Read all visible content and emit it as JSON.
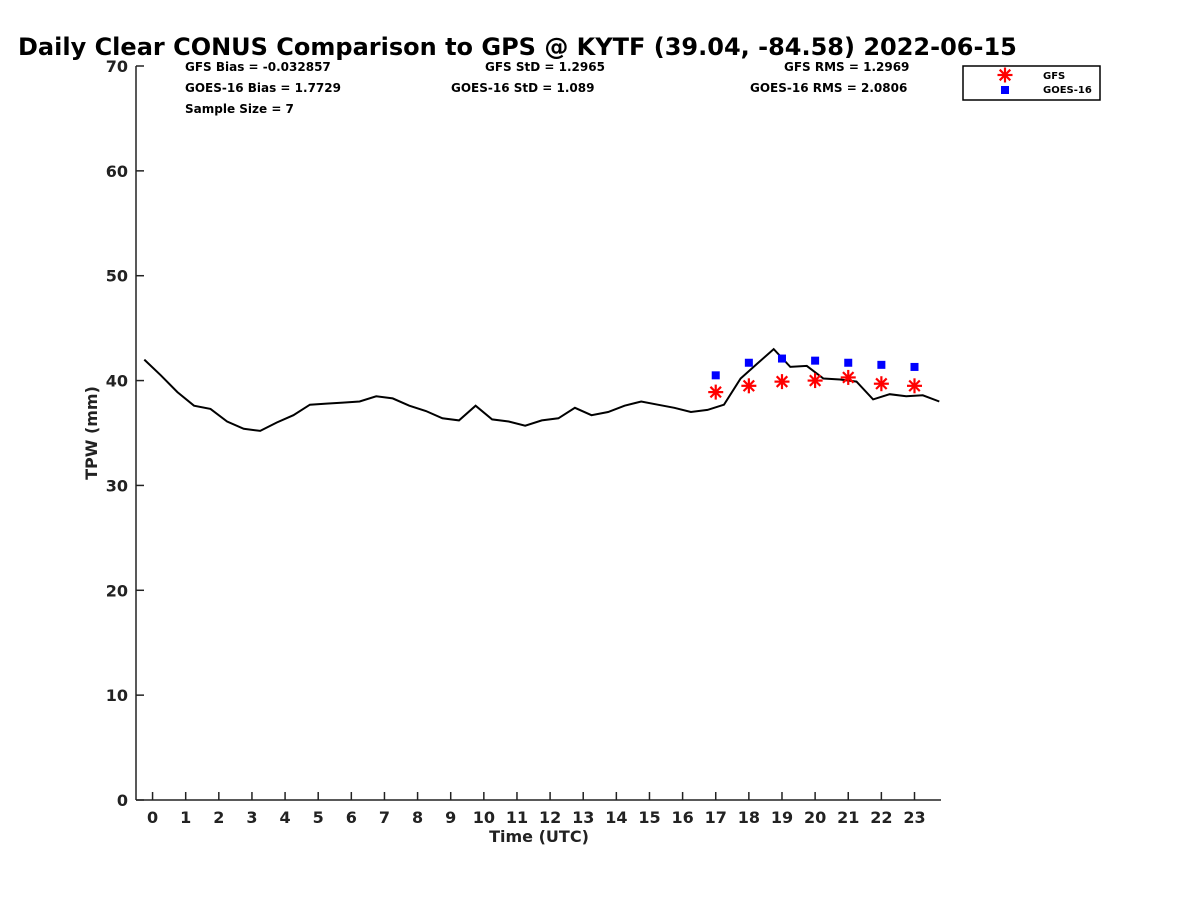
{
  "chart_data": {
    "type": "line",
    "title": "Daily Clear CONUS Comparison to GPS @ KYTF (39.04, -84.58) 2022-06-15",
    "xlabel": "Time (UTC)",
    "ylabel": "TPW (mm)",
    "xlim": [
      -0.5,
      23.8
    ],
    "ylim": [
      0,
      70
    ],
    "x_ticks": [
      "0",
      "1",
      "2",
      "3",
      "4",
      "5",
      "6",
      "7",
      "8",
      "9",
      "10",
      "11",
      "12",
      "13",
      "14",
      "15",
      "16",
      "17",
      "18",
      "19",
      "20",
      "21",
      "22",
      "23"
    ],
    "y_ticks": [
      "0",
      "10",
      "20",
      "30",
      "40",
      "50",
      "60",
      "70"
    ],
    "grid": false,
    "legend_position": "top-right",
    "stats": {
      "gfs_bias": "GFS Bias = -0.032857",
      "goes_bias": "GOES-16 Bias = 1.7729",
      "sample_size": "Sample Size = 7",
      "gfs_std": "GFS StD = 1.2965",
      "goes_std": "GOES-16 StD = 1.089",
      "gfs_rms": "GFS RMS = 1.2969",
      "goes_rms": "GOES-16 RMS = 2.0806"
    },
    "series": [
      {
        "kind": "line",
        "color": "#000000",
        "x": [
          -0.25,
          0.25,
          0.75,
          1.25,
          1.75,
          2.25,
          2.75,
          3.25,
          3.75,
          4.25,
          4.75,
          5.25,
          5.75,
          6.25,
          6.75,
          7.25,
          7.75,
          8.25,
          8.75,
          9.25,
          9.75,
          10.25,
          10.75,
          11.25,
          11.75,
          12.25,
          12.75,
          13.25,
          13.75,
          14.25,
          14.75,
          15.25,
          15.75,
          16.25,
          16.75,
          17.25,
          17.75,
          18.25,
          18.75,
          19.25,
          19.75,
          20.25,
          20.75,
          21.25,
          21.75,
          22.25,
          22.75,
          23.25,
          23.75
        ],
        "y": [
          42.0,
          40.5,
          38.9,
          37.6,
          37.3,
          36.1,
          35.4,
          35.2,
          36.0,
          36.7,
          37.7,
          37.8,
          37.9,
          38.0,
          38.5,
          38.3,
          37.6,
          37.1,
          36.4,
          36.2,
          37.6,
          36.3,
          36.1,
          35.7,
          36.2,
          36.4,
          37.4,
          36.7,
          37.0,
          37.6,
          38.0,
          37.7,
          37.4,
          37.0,
          37.2,
          37.7,
          40.2,
          41.6,
          43.0,
          41.3,
          41.4,
          40.2,
          40.1,
          39.9,
          38.2,
          38.7,
          38.5,
          38.6,
          38.0
        ]
      },
      {
        "name": "GFS",
        "kind": "scatter",
        "marker": "asterisk",
        "color": "#ff0000",
        "x": [
          17,
          18,
          19,
          20,
          21,
          22,
          23
        ],
        "y": [
          38.9,
          39.5,
          39.9,
          40.0,
          40.3,
          39.7,
          39.5
        ]
      },
      {
        "name": "GOES-16",
        "kind": "scatter",
        "marker": "square",
        "color": "#0000ff",
        "x": [
          17,
          18,
          19,
          20,
          21,
          22,
          23
        ],
        "y": [
          40.5,
          41.7,
          42.1,
          41.9,
          41.7,
          41.5,
          41.3
        ]
      }
    ]
  }
}
